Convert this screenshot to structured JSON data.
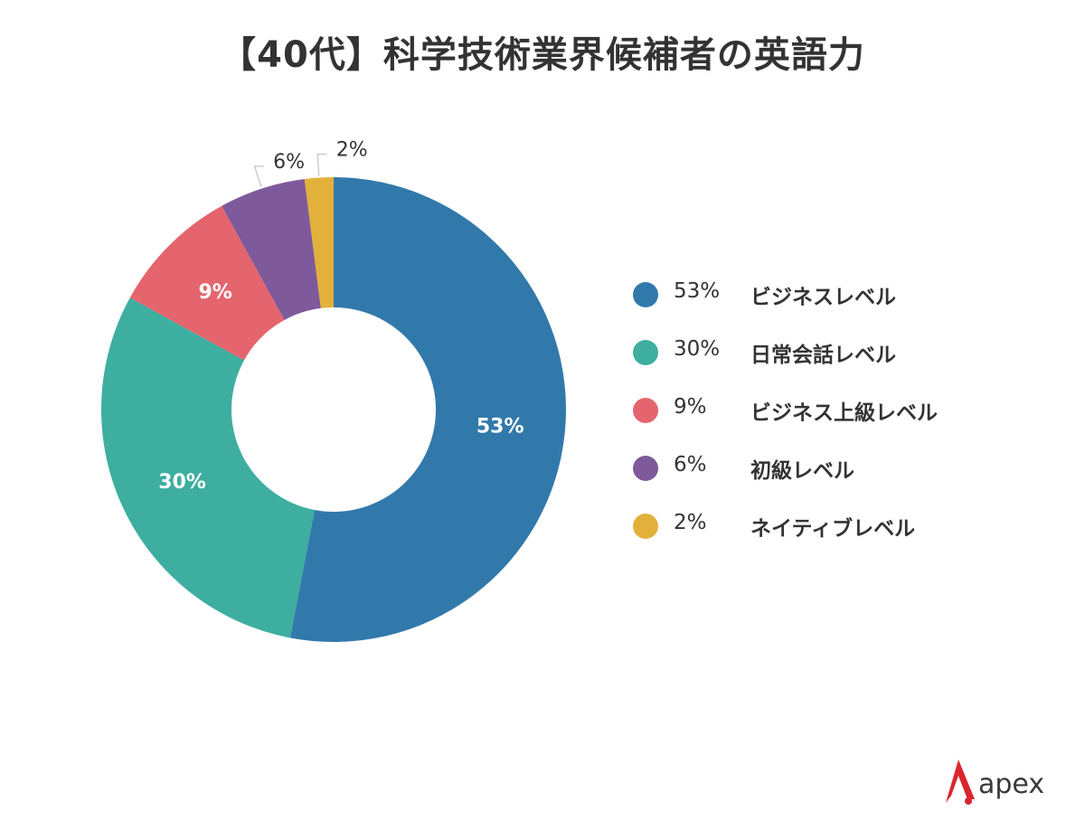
{
  "title": "【40代】科学技術業界候補者の英語力",
  "chart_data": {
    "type": "pie",
    "donut": true,
    "categories": [
      "ビジネスレベル",
      "日常会話レベル",
      "ビジネス上級レベル",
      "初級レベル",
      "ネイティブレベル"
    ],
    "values": [
      53,
      30,
      9,
      6,
      2
    ],
    "value_labels": [
      "53%",
      "30%",
      "9%",
      "6%",
      "2%"
    ],
    "colors": [
      "#3279ab",
      "#3dae9f",
      "#e4656e",
      "#7e5a9b",
      "#e2b13c"
    ],
    "legend_position": "right"
  },
  "legend": [
    {
      "pct": "53%",
      "label": "ビジネスレベル",
      "color": "#3279ab"
    },
    {
      "pct": "30%",
      "label": "日常会話レベル",
      "color": "#3dae9f"
    },
    {
      "pct": "9%",
      "label": "ビジネス上級レベル",
      "color": "#e4656e"
    },
    {
      "pct": "6%",
      "label": "初級レベル",
      "color": "#7e5a9b"
    },
    {
      "pct": "2%",
      "label": "ネイティブレベル",
      "color": "#e2b13c"
    }
  ],
  "logo": {
    "text": "apex",
    "color": "#d9262f"
  }
}
